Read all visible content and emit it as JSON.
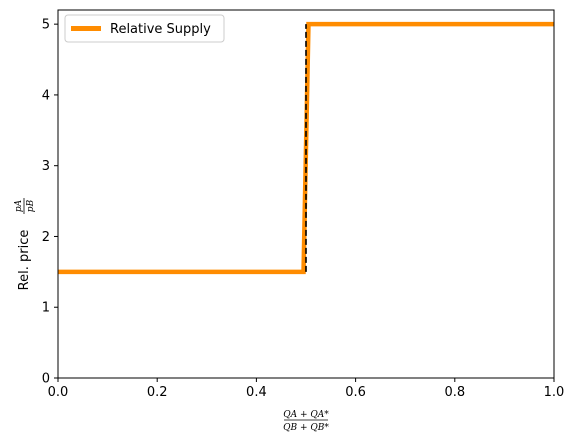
{
  "chart_data": {
    "type": "line",
    "title": "",
    "xlim": [
      0,
      1
    ],
    "ylim": [
      0,
      5.2
    ],
    "xticks": [
      "0.0",
      "0.2",
      "0.4",
      "0.6",
      "0.8",
      "1.0"
    ],
    "xtick_values": [
      0,
      0.2,
      0.4,
      0.6,
      0.8,
      1.0
    ],
    "yticks": [
      "0",
      "1",
      "2",
      "3",
      "4",
      "5"
    ],
    "ytick_values": [
      0,
      1,
      2,
      3,
      4,
      5
    ],
    "ylabel_prefix": "Rel. price",
    "ylabel_frac_num": "pA",
    "ylabel_frac_den": "pB",
    "xlabel_frac_num": "QA + QA*",
    "xlabel_frac_den": "QB + QB*",
    "grid": false,
    "legend_position": "top-left",
    "series": [
      {
        "name": "Relative Supply",
        "color": "#ff8c00",
        "style": "solid",
        "x": [
          0,
          0.495,
          0.505,
          1.0
        ],
        "y": [
          1.5,
          1.5,
          5.0,
          5.0
        ]
      },
      {
        "color": "#000000",
        "style": "dashed",
        "x": [
          0.5,
          0.5
        ],
        "y": [
          1.5,
          5.0
        ]
      }
    ]
  }
}
